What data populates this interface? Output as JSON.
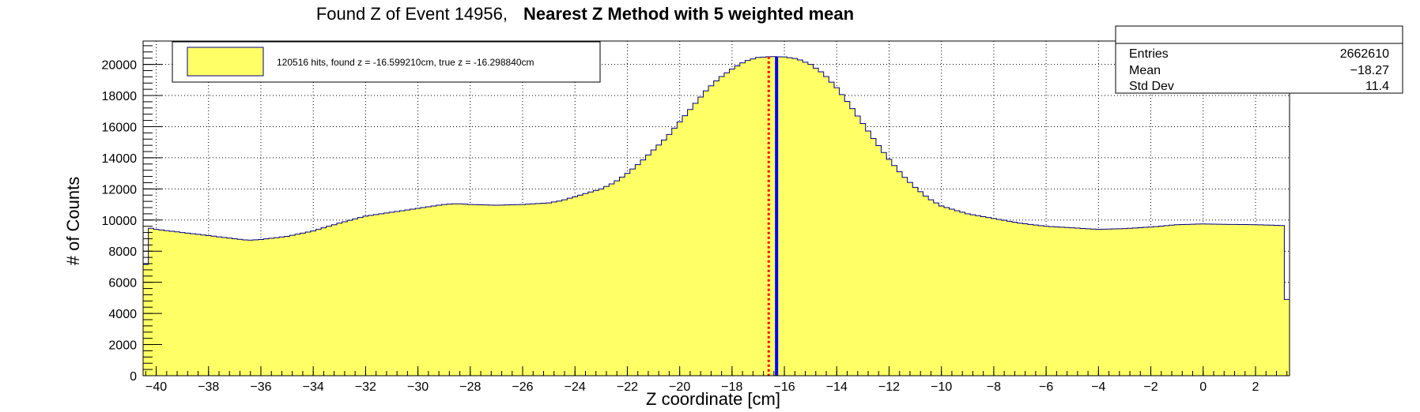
{
  "chart_data": {
    "type": "histogram",
    "title_part1": "Found Z of Event 14956,",
    "title_part2": "Nearest Z Method with 5 weighted mean",
    "xlabel": "Z coordinate [cm]",
    "ylabel": "# of Counts",
    "xlim": [
      -40.5,
      3.3
    ],
    "ylim": [
      0,
      21500
    ],
    "xticks": [
      -40,
      -38,
      -36,
      -34,
      -32,
      -30,
      -28,
      -26,
      -24,
      -22,
      -20,
      -18,
      -16,
      -14,
      -12,
      -10,
      -8,
      -6,
      -4,
      -2,
      0,
      2
    ],
    "xtick_labels": [
      "−40",
      "−38",
      "−36",
      "−34",
      "−32",
      "−30",
      "−28",
      "−26",
      "−24",
      "−22",
      "−20",
      "−18",
      "−16",
      "−14",
      "−12",
      "−10",
      "−8",
      "−6",
      "−4",
      "−2",
      "0",
      "2"
    ],
    "yticks": [
      0,
      2000,
      4000,
      6000,
      8000,
      10000,
      12000,
      14000,
      16000,
      18000,
      20000
    ],
    "ytick_labels": [
      "0",
      "2000",
      "4000",
      "6000",
      "8000",
      "10000",
      "12000",
      "14000",
      "16000",
      "18000",
      "20000"
    ],
    "grid": true,
    "fill_color": "#ffff66",
    "line_color": "#00007f",
    "bin_width": 0.2,
    "profile_x": [
      -40.5,
      -40.3,
      -40.0,
      -39.0,
      -38.0,
      -37.0,
      -36.5,
      -36.0,
      -35.0,
      -34.0,
      -33.0,
      -32.0,
      -31.0,
      -30.0,
      -29.0,
      -28.5,
      -28.0,
      -27.0,
      -26.0,
      -25.0,
      -24.5,
      -24.0,
      -23.0,
      -22.5,
      -22.0,
      -21.5,
      -21.0,
      -20.5,
      -20.0,
      -19.5,
      -19.0,
      -18.5,
      -18.0,
      -17.5,
      -17.0,
      -16.5,
      -16.0,
      -15.5,
      -15.0,
      -14.5,
      -14.0,
      -13.5,
      -13.0,
      -12.5,
      -12.0,
      -11.5,
      -11.0,
      -10.5,
      -10.0,
      -9.0,
      -8.0,
      -7.0,
      -6.0,
      -5.0,
      -4.0,
      -3.0,
      -2.0,
      -1.0,
      0.0,
      1.0,
      2.0,
      3.0,
      3.1,
      3.3
    ],
    "profile_y": [
      4800,
      9500,
      9400,
      9200,
      9000,
      8800,
      8700,
      8750,
      8950,
      9300,
      9800,
      10250,
      10500,
      10750,
      11000,
      11050,
      11000,
      10950,
      11000,
      11100,
      11250,
      11500,
      12000,
      12400,
      13000,
      13700,
      14500,
      15300,
      16300,
      17300,
      18300,
      19100,
      19700,
      20200,
      20450,
      20500,
      20480,
      20350,
      20000,
      19400,
      18500,
      17400,
      16200,
      15000,
      13900,
      12900,
      12100,
      11400,
      10900,
      10400,
      10100,
      9800,
      9600,
      9500,
      9400,
      9450,
      9550,
      9700,
      9750,
      9720,
      9700,
      9650,
      4900,
      4900
    ],
    "series": [
      {
        "name": "120516 hits, found z = -16.599210cm, true z = -16.298840cm"
      }
    ],
    "markers": [
      {
        "name": "found z",
        "x": -16.59921,
        "color": "#ff0000",
        "style": "dotted"
      },
      {
        "name": "true z",
        "x": -16.29884,
        "color": "#0000ff",
        "style": "solid"
      }
    ],
    "stats": {
      "rows": [
        {
          "label": "Entries",
          "value": "2662610"
        },
        {
          "label": "Mean",
          "value": "−18.27"
        },
        {
          "label": "Std Dev",
          "value": "11.4"
        }
      ]
    },
    "legend_position": "top-left"
  }
}
